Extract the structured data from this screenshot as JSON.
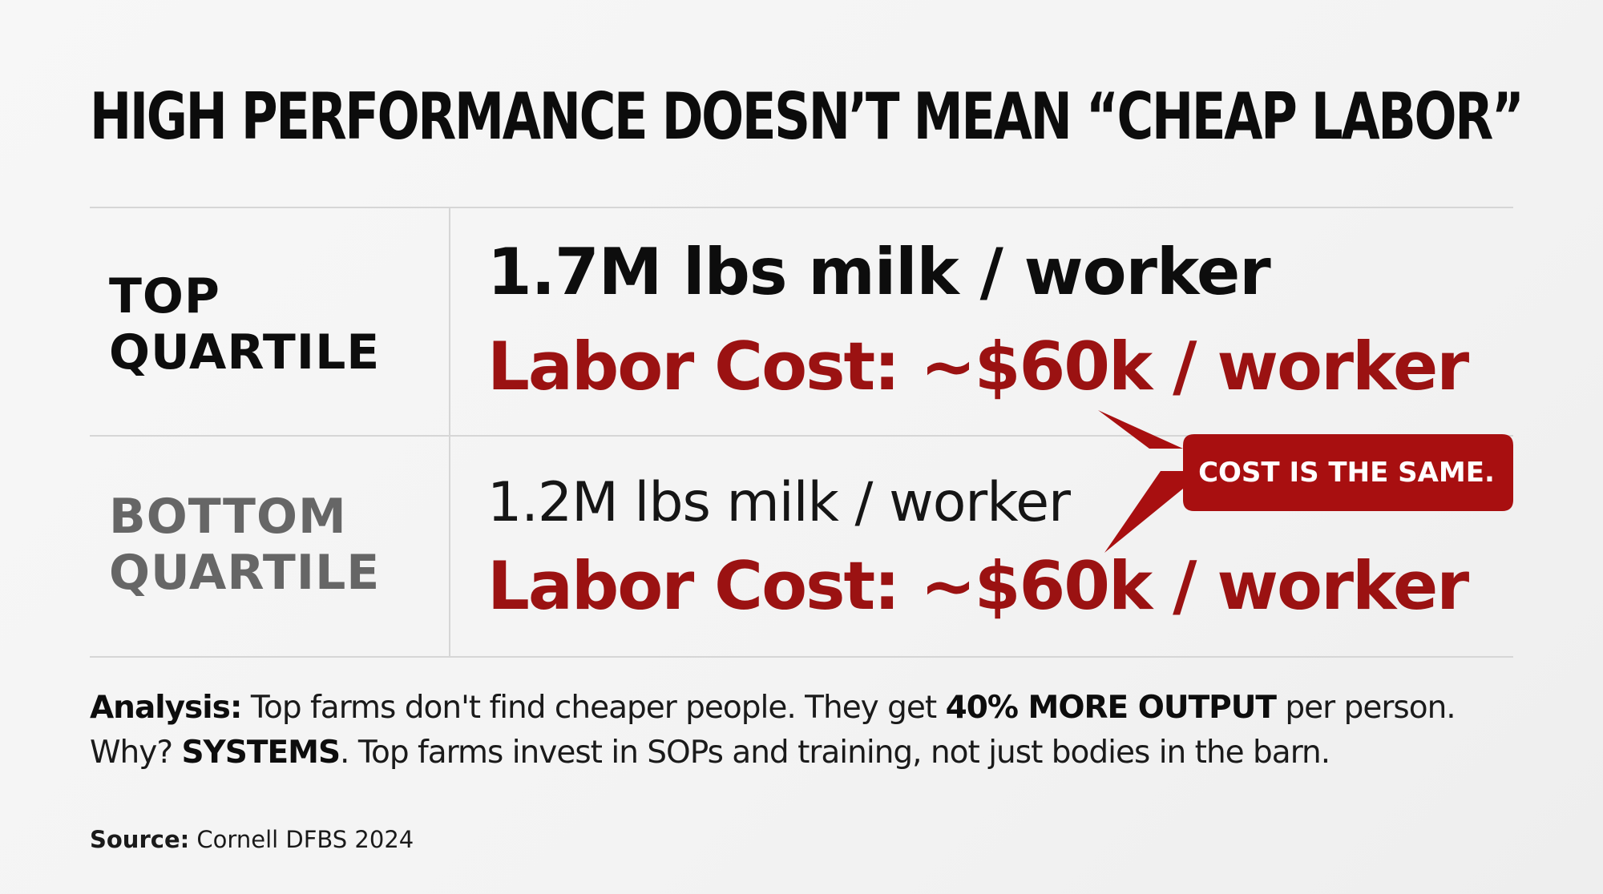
{
  "headline": "HIGH PERFORMANCE DOESN’T MEAN “CHEAP LABOR”",
  "rows": [
    {
      "label": "TOP\nQUARTILE",
      "output": "1.7M lbs milk / worker",
      "cost": "Labor Cost: ~$60k / worker"
    },
    {
      "label": "BOTTOM\nQUARTILE",
      "output": "1.2M lbs milk / worker",
      "cost": "Labor Cost: ~$60k / worker"
    }
  ],
  "callout": {
    "text": "COST IS THE SAME."
  },
  "analysis": {
    "line1": {
      "lead": "Analysis:",
      "text_a": " Top farms don't find cheaper people. They get ",
      "emphasis": "40% MORE OUTPUT",
      "text_b": " per person."
    },
    "line2": {
      "text_a": "Why? ",
      "emphasis": "SYSTEMS",
      "text_b": ". Top farms invest in SOPs and training, not just bodies in the barn."
    }
  },
  "source": {
    "label": "Source:",
    "value": " Cornell DFBS 2024"
  },
  "colors": {
    "accent_red": "#9b1212",
    "callout_red": "#a80f10",
    "bottom_label_gray": "#666666",
    "divider": "#d6d6d6"
  }
}
